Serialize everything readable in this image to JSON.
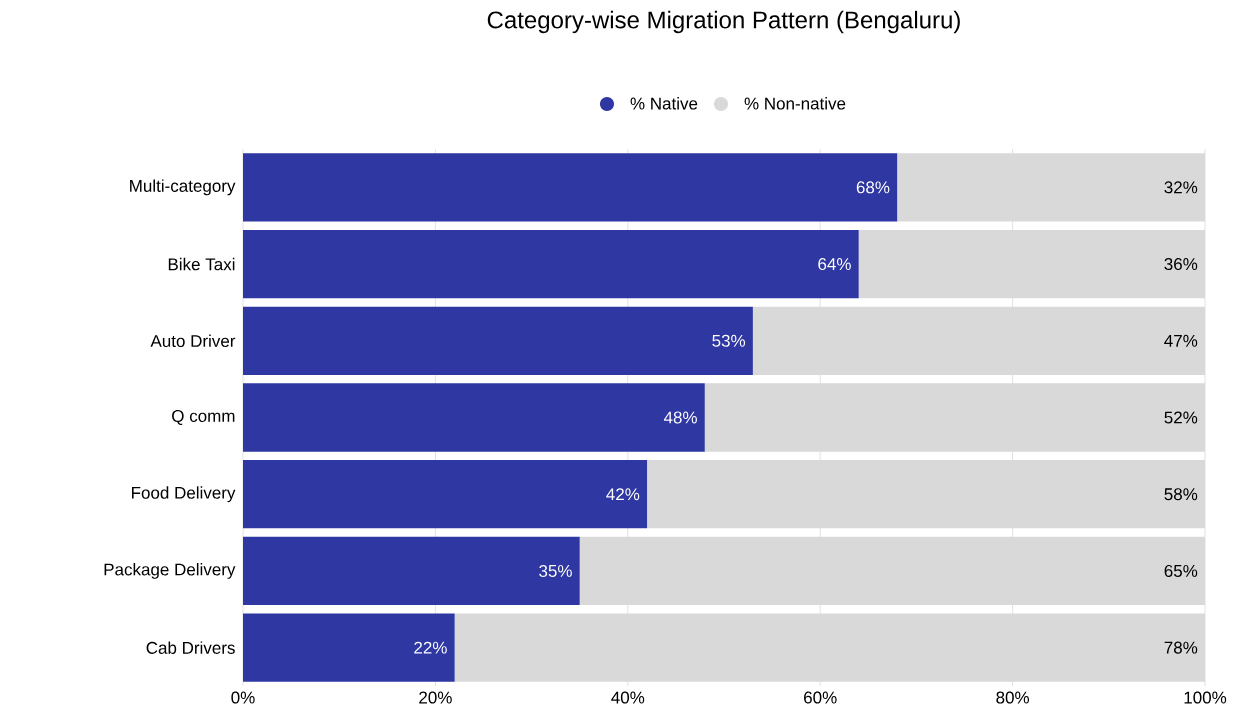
{
  "chart_data": {
    "type": "bar",
    "title": "Category-wise Migration Pattern (Bengaluru)",
    "orientation": "horizontal",
    "stacked": true,
    "categories": [
      "Multi-category",
      "Bike Taxi",
      "Auto Driver",
      "Q comm",
      "Food Delivery",
      "Package Delivery",
      "Cab Drivers"
    ],
    "series": [
      {
        "name": "% Native",
        "color": "#2e37a2",
        "values": [
          68,
          64,
          53,
          48,
          42,
          35,
          22
        ],
        "value_labels": [
          "68%",
          "64%",
          "53%",
          "48%",
          "42%",
          "35%",
          "22%"
        ]
      },
      {
        "name": "% Non-native",
        "color": "#d9d9d9",
        "values": [
          32,
          36,
          47,
          52,
          58,
          65,
          78
        ],
        "value_labels": [
          "32%",
          "36%",
          "47%",
          "52%",
          "58%",
          "65%",
          "78%"
        ]
      }
    ],
    "xlim": [
      0,
      100
    ],
    "xticks": [
      {
        "value": 0,
        "label": "0%"
      },
      {
        "value": 20,
        "label": "20%"
      },
      {
        "value": 40,
        "label": "40%"
      },
      {
        "value": 60,
        "label": "60%"
      },
      {
        "value": 80,
        "label": "80%"
      },
      {
        "value": 100,
        "label": "100%"
      }
    ],
    "grid": "x",
    "legend": "top"
  }
}
